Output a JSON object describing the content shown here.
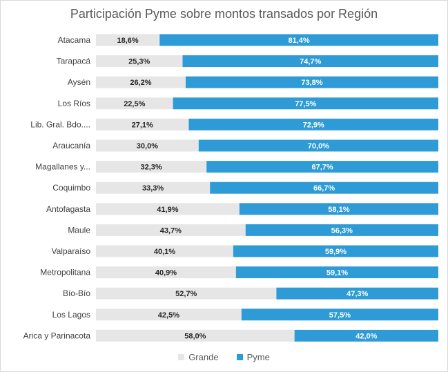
{
  "chart_data": {
    "type": "bar",
    "orientation": "horizontal",
    "stacked": "percent",
    "title": "Participación Pyme sobre montos transados por Región",
    "categories": [
      "Atacama",
      "Tarapacá",
      "Aysén",
      "Los Ríos",
      "Lib. Gral. Bdo....",
      "Araucanía",
      "Magallanes y...",
      "Coquimbo",
      "Antofagasta",
      "Maule",
      "Valparaíso",
      "Metropolitana",
      "Bío-Bío",
      "Los Lagos",
      "Arica y Parinacota"
    ],
    "series": [
      {
        "name": "Grande",
        "color": "#e6e6e6",
        "values": [
          18.6,
          25.3,
          26.2,
          22.5,
          27.1,
          30.0,
          32.3,
          33.3,
          41.9,
          43.7,
          40.1,
          40.9,
          52.7,
          42.5,
          58.0
        ],
        "labels": [
          "18,6%",
          "25,3%",
          "26,2%",
          "22,5%",
          "27,1%",
          "30,0%",
          "32,3%",
          "33,3%",
          "41,9%",
          "43,7%",
          "40,1%",
          "40,9%",
          "52,7%",
          "42,5%",
          "58,0%"
        ]
      },
      {
        "name": "Pyme",
        "color": "#2e9bd6",
        "values": [
          81.4,
          74.7,
          73.8,
          77.5,
          72.9,
          70.0,
          67.7,
          66.7,
          58.1,
          56.3,
          59.9,
          59.1,
          47.3,
          57.5,
          42.0
        ],
        "labels": [
          "81,4%",
          "74,7%",
          "73,8%",
          "77,5%",
          "72,9%",
          "70,0%",
          "67,7%",
          "66,7%",
          "58,1%",
          "56,3%",
          "59,9%",
          "59,1%",
          "47,3%",
          "57,5%",
          "42,0%"
        ]
      }
    ],
    "xlim": [
      0,
      100
    ],
    "grid": false,
    "legend_position": "bottom"
  }
}
